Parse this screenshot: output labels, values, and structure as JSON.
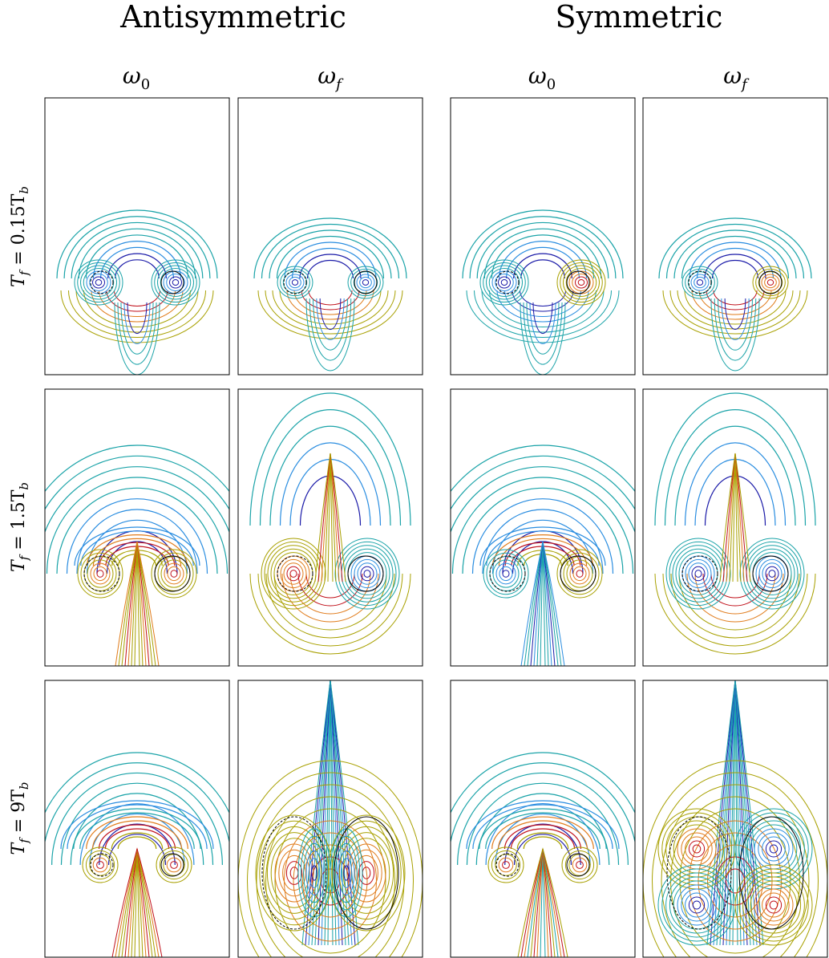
{
  "figure": {
    "group_titles": [
      "Antisymmetric",
      "Symmetric"
    ],
    "column_labels": [
      {
        "main": "ω",
        "sub": "0"
      },
      {
        "main": "ω",
        "sub": "f"
      },
      {
        "main": "ω",
        "sub": "0"
      },
      {
        "main": "ω",
        "sub": "f"
      }
    ],
    "row_labels": [
      {
        "t": "T",
        "t_sub": "f",
        "eq": " = 0.15T",
        "b_sub": "b"
      },
      {
        "t": "T",
        "t_sub": "f",
        "eq": " = 1.5T",
        "b_sub": "b"
      },
      {
        "t": "T",
        "t_sub": "f",
        "eq": " = 9T",
        "b_sub": "b"
      }
    ]
  },
  "colors": {
    "positive_outer": "#a8a000",
    "positive_mid": "#e07b1a",
    "positive_inner": "#c0101a",
    "negative_outer": "#1aa3a8",
    "negative_mid": "#2a8de0",
    "negative_inner": "#1a1aa8",
    "core_circle": "#000000",
    "frame": "#000000"
  },
  "chart_data": {
    "type": "contour",
    "layout": "3 rows x 4 panels",
    "panels": [
      {
        "row": "T_f = 0.15T_b",
        "column": "Antisymmetric ω_0"
      },
      {
        "row": "T_f = 0.15T_b",
        "column": "Antisymmetric ω_f"
      },
      {
        "row": "T_f = 0.15T_b",
        "column": "Symmetric ω_0"
      },
      {
        "row": "T_f = 0.15T_b",
        "column": "Symmetric ω_f"
      },
      {
        "row": "T_f = 1.5T_b",
        "column": "Antisymmetric ω_0"
      },
      {
        "row": "T_f = 1.5T_b",
        "column": "Antisymmetric ω_f"
      },
      {
        "row": "T_f = 1.5T_b",
        "column": "Symmetric ω_0"
      },
      {
        "row": "T_f = 1.5T_b",
        "column": "Symmetric ω_f"
      },
      {
        "row": "T_f = 9T_b",
        "column": "Antisymmetric ω_0"
      },
      {
        "row": "T_f = 9T_b",
        "column": "Antisymmetric ω_f"
      },
      {
        "row": "T_f = 9T_b",
        "column": "Symmetric ω_0"
      },
      {
        "row": "T_f = 9T_b",
        "column": "Symmetric ω_f"
      }
    ],
    "colormap": "diverging (teal-blue negative / olive-orange-red positive)",
    "axes_ticks": false
  }
}
